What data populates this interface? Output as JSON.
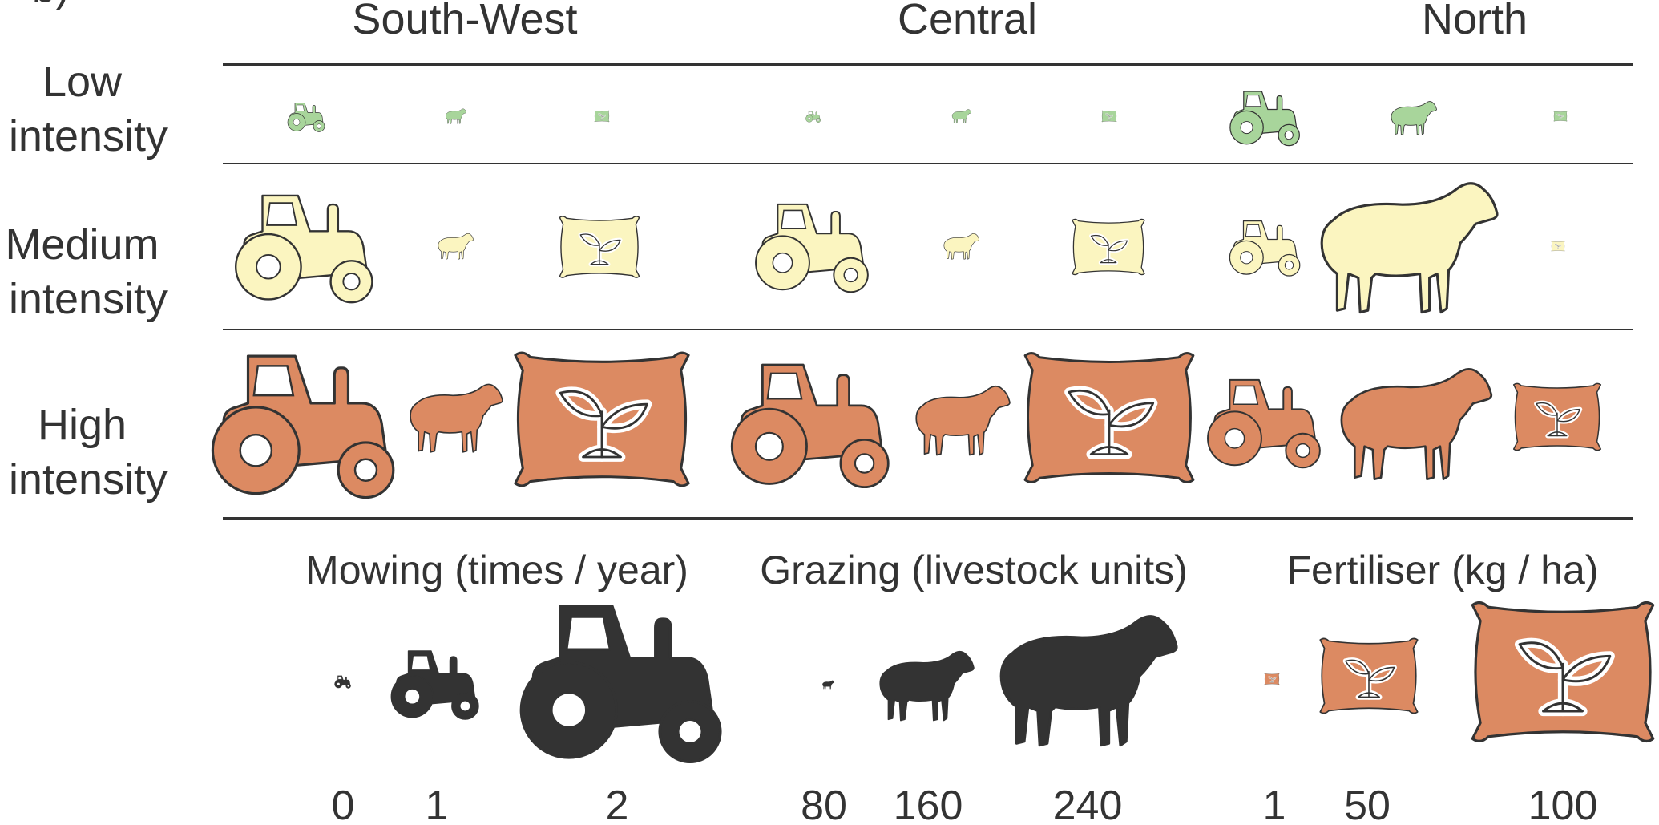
{
  "panel_label": "b)",
  "columns": [
    {
      "id": "south-west",
      "label": "South-West"
    },
    {
      "id": "central",
      "label": "Central"
    },
    {
      "id": "north",
      "label": "North"
    }
  ],
  "rows": [
    {
      "id": "low",
      "line1": "Low",
      "line2": "intensity"
    },
    {
      "id": "medium",
      "line1": "Medium",
      "line2": "intensity"
    },
    {
      "id": "high",
      "line1": "High",
      "line2": "intensity"
    }
  ],
  "colors": {
    "low": "#a8d59b",
    "medium": "#fbf5c0",
    "high": "#dc8a62",
    "legend": "#333333",
    "stroke": "#333333"
  },
  "legend": {
    "mowing": {
      "title": "Mowing (times / year)",
      "values": [
        "0",
        "1",
        "2"
      ]
    },
    "grazing": {
      "title": "Grazing (livestock units)",
      "values": [
        "80",
        "160",
        "240"
      ]
    },
    "fertiliser": {
      "title": "Fertiliser (kg / ha)",
      "values": [
        "1",
        "50",
        "100"
      ]
    }
  },
  "icons": [
    "tractor-icon",
    "sheep-icon",
    "fertiliser-bag-icon"
  ]
}
